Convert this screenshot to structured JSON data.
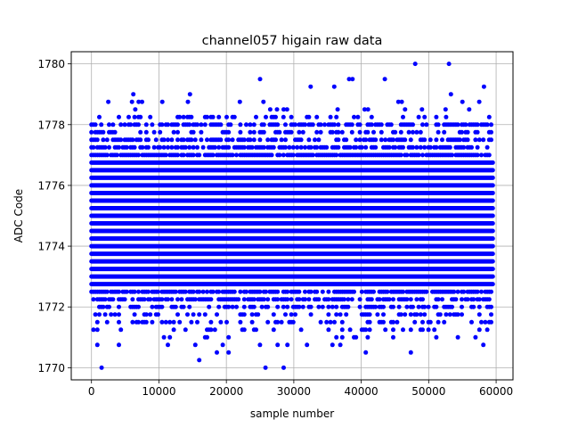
{
  "chart_data": {
    "type": "scatter",
    "title": "channel057 higain raw data",
    "xlabel": "sample number",
    "ylabel": "ADC Code",
    "xlim": [
      -3000,
      62500
    ],
    "ylim": [
      1769.6,
      1780.4
    ],
    "xticks": [
      0,
      10000,
      20000,
      30000,
      40000,
      50000,
      60000
    ],
    "xtick_labels": [
      "0",
      "10000",
      "20000",
      "30000",
      "40000",
      "50000",
      "60000"
    ],
    "yticks": [
      1770,
      1772,
      1774,
      1776,
      1778,
      1780
    ],
    "ytick_labels": [
      "1770",
      "1772",
      "1774",
      "1776",
      "1778",
      "1780"
    ],
    "grid": true,
    "marker_color": "#0000ff",
    "x_range": [
      0,
      59500
    ],
    "levels": [
      1770.25,
      1770.5,
      1770.75,
      1771.0,
      1771.25,
      1771.5,
      1771.75,
      1772.0,
      1772.25,
      1772.5,
      1772.75,
      1773.0,
      1773.25,
      1773.5,
      1773.75,
      1774.0,
      1774.25,
      1774.5,
      1774.75,
      1775.0,
      1775.25,
      1775.5,
      1775.75,
      1776.0,
      1776.25,
      1776.5,
      1776.75,
      1777.0,
      1777.25,
      1777.5,
      1777.75,
      1778.0,
      1778.25
    ],
    "level_density": [
      0.01,
      0.03,
      0.06,
      0.09,
      0.15,
      0.22,
      0.3,
      0.45,
      0.65,
      0.8,
      0.92,
      1,
      1,
      1,
      1,
      1,
      1,
      1,
      1,
      1,
      1,
      1,
      1,
      1,
      1,
      1,
      0.95,
      0.85,
      0.7,
      0.5,
      0.3,
      0.55,
      0.25
    ],
    "outliers": [
      {
        "x": 1500,
        "y": 1770.0
      },
      {
        "x": 25800,
        "y": 1770.0
      },
      {
        "x": 28500,
        "y": 1770.0
      },
      {
        "x": 48000,
        "y": 1780.0
      },
      {
        "x": 53000,
        "y": 1780.0
      },
      {
        "x": 25000,
        "y": 1779.5
      },
      {
        "x": 38200,
        "y": 1779.5
      },
      {
        "x": 38700,
        "y": 1779.5
      },
      {
        "x": 43500,
        "y": 1779.5
      },
      {
        "x": 32500,
        "y": 1779.25
      },
      {
        "x": 36000,
        "y": 1779.25
      },
      {
        "x": 58200,
        "y": 1779.25
      },
      {
        "x": 6200,
        "y": 1779.0
      },
      {
        "x": 14600,
        "y": 1779.0
      },
      {
        "x": 53300,
        "y": 1779.0
      },
      {
        "x": 2500,
        "y": 1778.75
      },
      {
        "x": 6000,
        "y": 1778.75
      },
      {
        "x": 7000,
        "y": 1778.75
      },
      {
        "x": 7500,
        "y": 1778.75
      },
      {
        "x": 10500,
        "y": 1778.75
      },
      {
        "x": 14300,
        "y": 1778.75
      },
      {
        "x": 22000,
        "y": 1778.75
      },
      {
        "x": 25500,
        "y": 1778.75
      },
      {
        "x": 45500,
        "y": 1778.75
      },
      {
        "x": 46000,
        "y": 1778.75
      },
      {
        "x": 55000,
        "y": 1778.75
      },
      {
        "x": 57500,
        "y": 1778.75
      },
      {
        "x": 6500,
        "y": 1778.5
      },
      {
        "x": 26500,
        "y": 1778.5
      },
      {
        "x": 27500,
        "y": 1778.5
      },
      {
        "x": 28500,
        "y": 1778.5
      },
      {
        "x": 29000,
        "y": 1778.5
      },
      {
        "x": 36500,
        "y": 1778.5
      },
      {
        "x": 40500,
        "y": 1778.5
      },
      {
        "x": 41000,
        "y": 1778.5
      },
      {
        "x": 46500,
        "y": 1778.5
      },
      {
        "x": 49000,
        "y": 1778.5
      },
      {
        "x": 52500,
        "y": 1778.5
      },
      {
        "x": 56000,
        "y": 1778.5
      }
    ]
  }
}
